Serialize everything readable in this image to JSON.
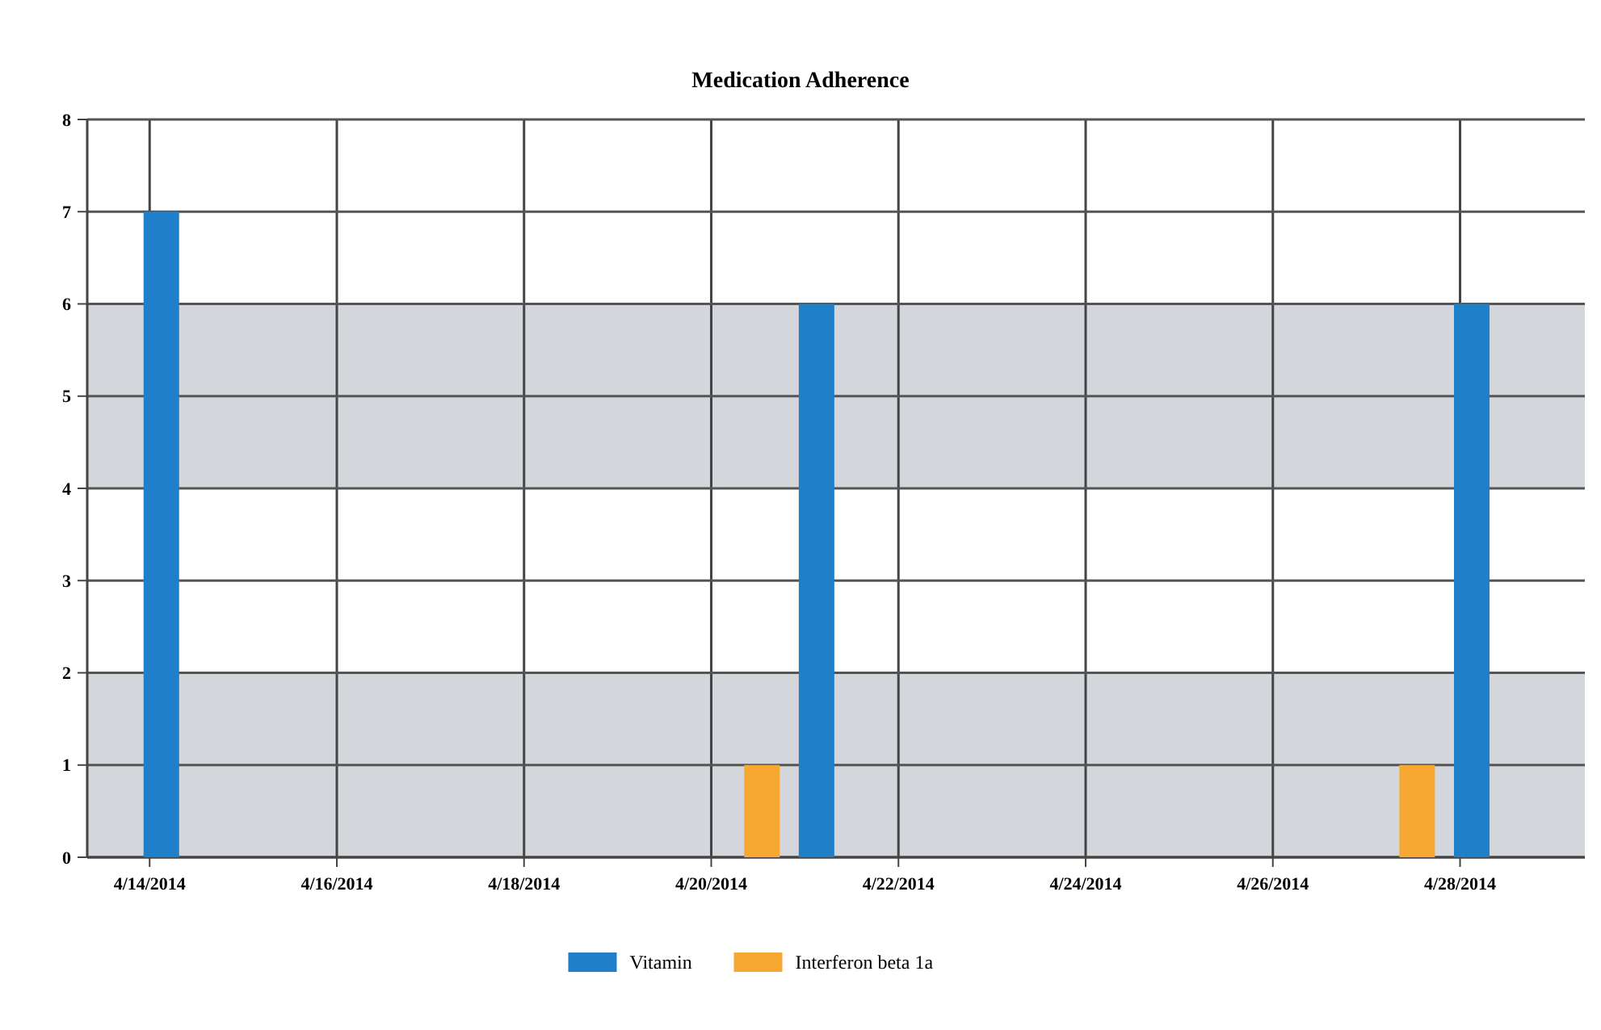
{
  "chart_data": {
    "type": "bar",
    "title": "Medication Adherence",
    "xlim": [
      "2014-04-13T08:00",
      "2014-04-29T08:00"
    ],
    "xticks": [
      {
        "value": "2014-04-14",
        "label": "4/14/2014"
      },
      {
        "value": "2014-04-16",
        "label": "4/16/2014"
      },
      {
        "value": "2014-04-18",
        "label": "4/18/2014"
      },
      {
        "value": "2014-04-20",
        "label": "4/20/2014"
      },
      {
        "value": "2014-04-22",
        "label": "4/22/2014"
      },
      {
        "value": "2014-04-24",
        "label": "4/24/2014"
      },
      {
        "value": "2014-04-26",
        "label": "4/26/2014"
      },
      {
        "value": "2014-04-28",
        "label": "4/28/2014"
      }
    ],
    "ylim": [
      0,
      8
    ],
    "yticks": [
      0,
      1,
      2,
      3,
      4,
      5,
      6,
      7,
      8
    ],
    "grid": true,
    "legend": "bottom",
    "bands": [
      {
        "axis": "y",
        "from": 0,
        "to": 2,
        "color": "#d3d6da"
      },
      {
        "axis": "y",
        "from": 4,
        "to": 6,
        "color": "#d3d6da"
      }
    ],
    "series": [
      {
        "name": "Vitamin",
        "color": "#1f7fc8",
        "x": [
          "2014-04-14T03:00",
          "2014-04-21T03:00",
          "2014-04-28T03:00"
        ],
        "values": [
          7,
          6,
          6
        ]
      },
      {
        "name": "Interferon beta 1a",
        "color": "#f7a833",
        "x": [
          "2014-04-20T13:00",
          "2014-04-27T13:00"
        ],
        "values": [
          1,
          1
        ]
      }
    ]
  }
}
